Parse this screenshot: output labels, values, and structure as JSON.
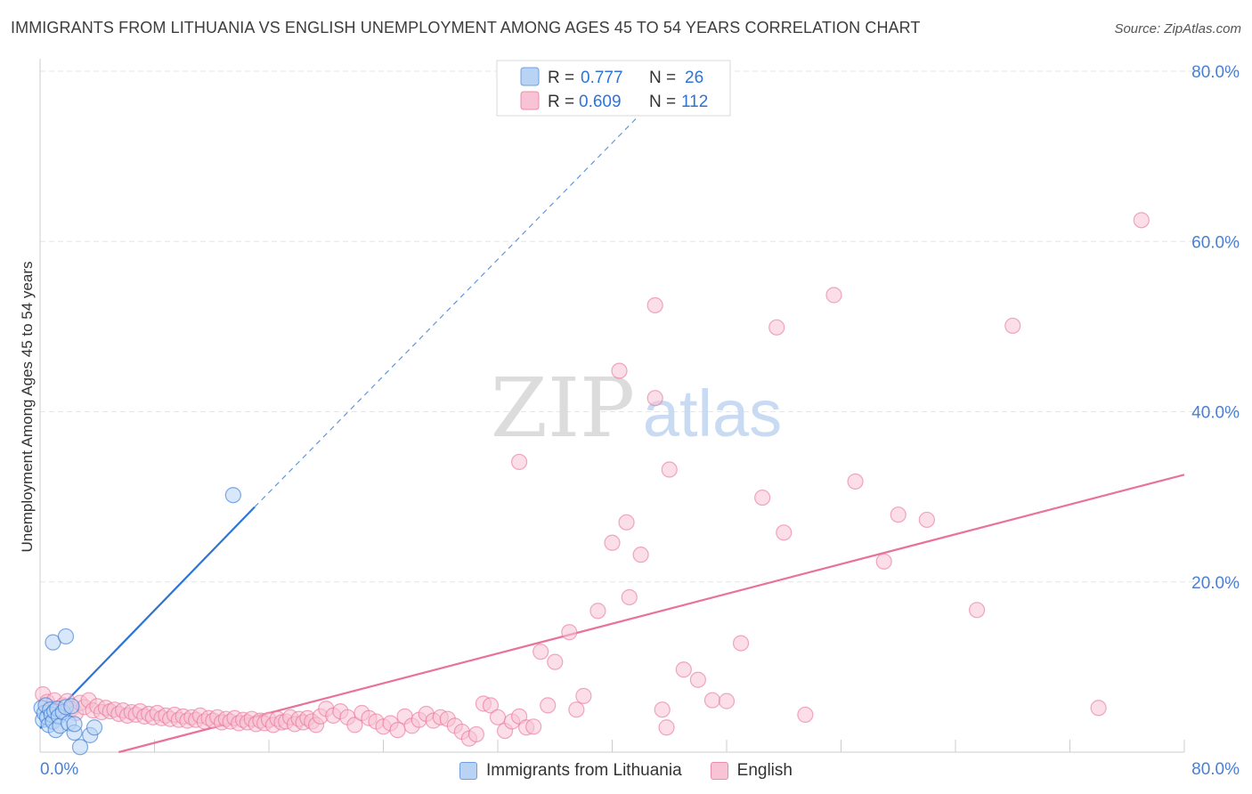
{
  "title": "IMMIGRANTS FROM LITHUANIA VS ENGLISH UNEMPLOYMENT AMONG AGES 45 TO 54 YEARS CORRELATION CHART",
  "source": "Source: ZipAtlas.com",
  "watermark": {
    "zip": "ZIP",
    "atlas": "atlas"
  },
  "legend_top": [
    {
      "r_label": "R = ",
      "r_value": "0.777",
      "n_label": "N = ",
      "n_value": "26"
    },
    {
      "r_label": "R = ",
      "r_value": "0.609",
      "n_label": "N = ",
      "n_value": "112"
    }
  ],
  "legend_bottom": [
    {
      "label": "Immigrants from Lithuania"
    },
    {
      "label": "English"
    }
  ],
  "chart_data": {
    "type": "scatter",
    "title": "IMMIGRANTS FROM LITHUANIA VS ENGLISH UNEMPLOYMENT AMONG AGES 45 TO 54 YEARS CORRELATION CHART",
    "xlabel": "",
    "ylabel": "Unemployment Among Ages 45 to 54 years",
    "xlim": [
      0,
      80
    ],
    "ylim": [
      0,
      80
    ],
    "x_tick_labels": [
      "0.0%",
      "80.0%"
    ],
    "y_tick_labels": [
      "20.0%",
      "40.0%",
      "60.0%",
      "80.0%"
    ],
    "y_ticks": [
      20,
      40,
      60,
      80
    ],
    "grid": true,
    "colors": {
      "blue": "#2d74d6",
      "pink": "#e8729a",
      "axis_text": "#4a7fd0"
    },
    "series": [
      {
        "name": "Immigrants from Lithuania",
        "color": "#2d74d6",
        "fill": "#b8d3f4",
        "trend": {
          "x": [
            0,
            15.0
          ],
          "y": [
            2.8,
            28.8
          ],
          "dashed_extension_to": [
            42.0,
            75.0
          ]
        },
        "points": [
          [
            0.1,
            5.2
          ],
          [
            0.2,
            3.8
          ],
          [
            0.3,
            4.6
          ],
          [
            0.4,
            5.5
          ],
          [
            0.5,
            4.1
          ],
          [
            0.6,
            3.2
          ],
          [
            0.7,
            5.0
          ],
          [
            0.8,
            4.4
          ],
          [
            0.9,
            3.6
          ],
          [
            1.0,
            4.8
          ],
          [
            1.1,
            2.6
          ],
          [
            1.2,
            5.1
          ],
          [
            1.3,
            4.2
          ],
          [
            1.4,
            3.1
          ],
          [
            1.6,
            4.7
          ],
          [
            1.8,
            5.3
          ],
          [
            2.0,
            3.4
          ],
          [
            2.2,
            5.4
          ],
          [
            2.4,
            2.3
          ],
          [
            0.9,
            12.9
          ],
          [
            1.8,
            13.6
          ],
          [
            2.4,
            3.3
          ],
          [
            2.8,
            0.6
          ],
          [
            3.5,
            2.0
          ],
          [
            3.8,
            2.9
          ],
          [
            13.5,
            30.2
          ]
        ]
      },
      {
        "name": "English",
        "color": "#e8729a",
        "fill": "#f8c3d4",
        "trend": {
          "x": [
            5.5,
            80.0
          ],
          "y": [
            0,
            32.6
          ]
        },
        "points": [
          [
            0.2,
            6.8
          ],
          [
            0.5,
            5.9
          ],
          [
            0.8,
            5.2
          ],
          [
            1.0,
            6.1
          ],
          [
            1.3,
            4.8
          ],
          [
            1.6,
            5.5
          ],
          [
            1.9,
            6.0
          ],
          [
            2.2,
            5.1
          ],
          [
            2.5,
            4.6
          ],
          [
            2.8,
            5.8
          ],
          [
            3.1,
            5.3
          ],
          [
            3.4,
            6.1
          ],
          [
            3.7,
            4.9
          ],
          [
            4.0,
            5.4
          ],
          [
            4.3,
            4.7
          ],
          [
            4.6,
            5.2
          ],
          [
            4.9,
            4.8
          ],
          [
            5.2,
            5.0
          ],
          [
            5.5,
            4.5
          ],
          [
            5.8,
            4.9
          ],
          [
            6.1,
            4.3
          ],
          [
            6.4,
            4.7
          ],
          [
            6.7,
            4.4
          ],
          [
            7.0,
            4.8
          ],
          [
            7.3,
            4.2
          ],
          [
            7.6,
            4.5
          ],
          [
            7.9,
            4.1
          ],
          [
            8.2,
            4.6
          ],
          [
            8.5,
            4.0
          ],
          [
            8.8,
            4.3
          ],
          [
            9.1,
            3.9
          ],
          [
            9.4,
            4.4
          ],
          [
            9.7,
            3.8
          ],
          [
            10.0,
            4.2
          ],
          [
            10.3,
            3.7
          ],
          [
            10.6,
            4.1
          ],
          [
            10.9,
            3.8
          ],
          [
            11.2,
            4.3
          ],
          [
            11.5,
            3.6
          ],
          [
            11.8,
            4.0
          ],
          [
            12.1,
            3.7
          ],
          [
            12.4,
            4.1
          ],
          [
            12.7,
            3.5
          ],
          [
            13.0,
            3.9
          ],
          [
            13.3,
            3.6
          ],
          [
            13.6,
            4.0
          ],
          [
            13.9,
            3.4
          ],
          [
            14.2,
            3.8
          ],
          [
            14.5,
            3.5
          ],
          [
            14.8,
            3.9
          ],
          [
            15.1,
            3.3
          ],
          [
            15.4,
            3.7
          ],
          [
            15.7,
            3.4
          ],
          [
            16.0,
            3.8
          ],
          [
            16.3,
            3.2
          ],
          [
            16.6,
            3.9
          ],
          [
            16.9,
            3.5
          ],
          [
            17.2,
            3.6
          ],
          [
            17.5,
            4.1
          ],
          [
            17.8,
            3.3
          ],
          [
            18.1,
            3.9
          ],
          [
            18.4,
            3.5
          ],
          [
            18.7,
            4.0
          ],
          [
            19.0,
            3.6
          ],
          [
            19.3,
            3.2
          ],
          [
            19.6,
            4.2
          ],
          [
            20.0,
            5.1
          ],
          [
            20.5,
            4.3
          ],
          [
            21.0,
            4.8
          ],
          [
            21.5,
            4.1
          ],
          [
            22.0,
            3.2
          ],
          [
            22.5,
            4.6
          ],
          [
            23.0,
            4.0
          ],
          [
            23.5,
            3.6
          ],
          [
            24.0,
            3.0
          ],
          [
            24.5,
            3.4
          ],
          [
            25.0,
            2.6
          ],
          [
            25.5,
            4.2
          ],
          [
            26.0,
            3.1
          ],
          [
            26.5,
            3.8
          ],
          [
            27.0,
            4.5
          ],
          [
            27.5,
            3.7
          ],
          [
            28.0,
            4.1
          ],
          [
            28.5,
            3.9
          ],
          [
            29.0,
            3.1
          ],
          [
            29.5,
            2.4
          ],
          [
            30.0,
            1.6
          ],
          [
            30.5,
            2.1
          ],
          [
            31.0,
            5.7
          ],
          [
            31.5,
            5.5
          ],
          [
            32.0,
            4.1
          ],
          [
            32.5,
            2.5
          ],
          [
            33.0,
            3.6
          ],
          [
            33.5,
            4.2
          ],
          [
            34.0,
            2.9
          ],
          [
            34.5,
            3.0
          ],
          [
            35.0,
            11.8
          ],
          [
            35.5,
            5.5
          ],
          [
            36.0,
            10.6
          ],
          [
            37.0,
            14.1
          ],
          [
            37.5,
            5.0
          ],
          [
            38.0,
            6.6
          ],
          [
            39.0,
            16.6
          ],
          [
            40.0,
            24.6
          ],
          [
            41.0,
            27.0
          ],
          [
            42.0,
            23.2
          ],
          [
            44.0,
            33.2
          ]
        ],
        "outliers": [
          [
            33.5,
            34.1
          ],
          [
            40.5,
            44.8
          ],
          [
            41.2,
            18.2
          ],
          [
            43.0,
            41.6
          ],
          [
            43.5,
            5.0
          ],
          [
            43.8,
            2.9
          ],
          [
            45.0,
            9.7
          ],
          [
            46.0,
            8.5
          ],
          [
            47.0,
            6.1
          ],
          [
            48.0,
            6.0
          ],
          [
            49.0,
            12.8
          ],
          [
            50.5,
            29.9
          ],
          [
            51.5,
            49.9
          ],
          [
            52.0,
            25.8
          ],
          [
            53.5,
            4.4
          ],
          [
            55.5,
            53.7
          ],
          [
            57.0,
            31.8
          ],
          [
            59.0,
            22.4
          ],
          [
            60.0,
            27.9
          ],
          [
            62.0,
            27.3
          ],
          [
            65.5,
            16.7
          ],
          [
            68.0,
            50.1
          ],
          [
            74.0,
            5.2
          ],
          [
            77.0,
            62.5
          ],
          [
            43.0,
            52.5
          ]
        ]
      }
    ]
  }
}
